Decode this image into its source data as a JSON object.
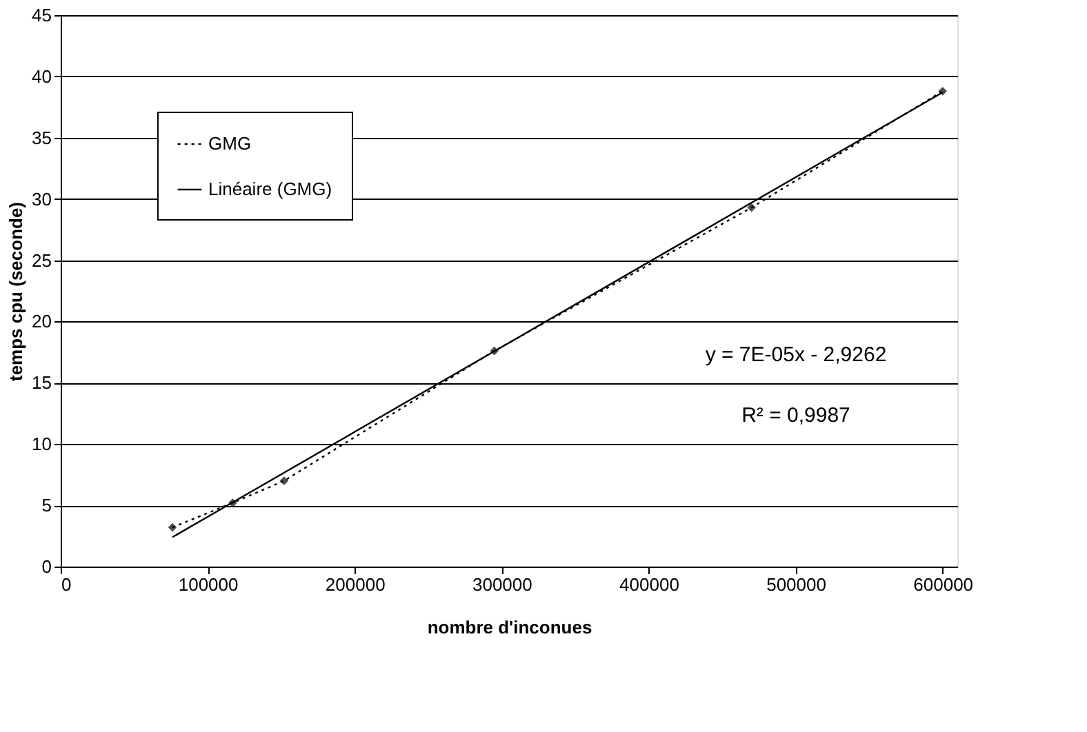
{
  "chart_data": {
    "type": "line",
    "xlabel": "nombre d'inconues",
    "ylabel": "temps cpu (seconde)",
    "series": [
      {
        "name": "GMG",
        "color": "#000000",
        "marker": "diamond",
        "line_style": "dotted",
        "x": [
          76000,
          117000,
          152000,
          295000,
          470000,
          600000
        ],
        "values": [
          3.2,
          5.2,
          7.0,
          17.6,
          29.3,
          38.8
        ]
      },
      {
        "name": "Linéaire (GMG)",
        "color": "#000000",
        "marker": "none",
        "line_style": "solid",
        "x": [
          76000,
          600000
        ],
        "values": [
          2.4,
          38.7
        ]
      }
    ],
    "annotations": [
      "y = 7E-05x - 2,9262",
      "R² = 0,9987"
    ],
    "xlim": [
      0,
      610000
    ],
    "xticks": [
      0,
      100000,
      200000,
      300000,
      400000,
      500000,
      600000
    ],
    "ylim": [
      0,
      45
    ],
    "yticks": [
      0,
      5,
      10,
      15,
      20,
      25,
      30,
      35,
      40,
      45
    ],
    "grid": "y",
    "legend": "top left"
  }
}
